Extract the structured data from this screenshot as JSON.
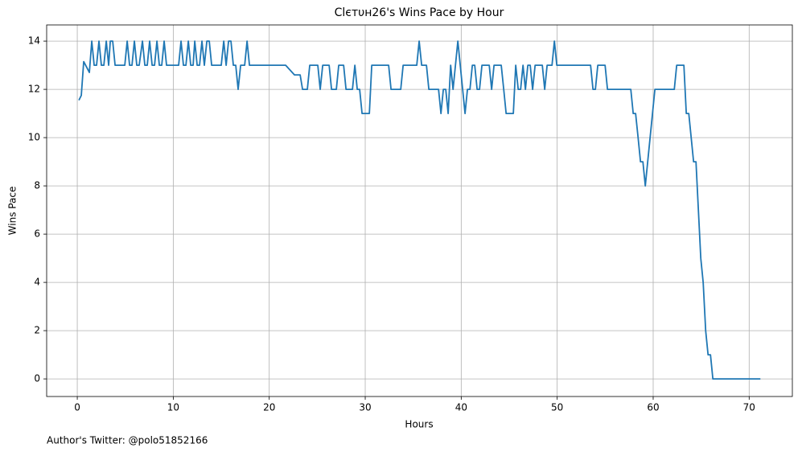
{
  "chart_data": {
    "type": "line",
    "title": "Clєтυн26's Wins Pace by Hour",
    "xlabel": "Hours",
    "ylabel": "Wins Pace",
    "footnote": "Author's Twitter: @polo51852166",
    "color": "#1f77b4",
    "grid": true,
    "xlim": [
      -3.19,
      74.5
    ],
    "ylim": [
      -0.73,
      14.67
    ],
    "xticks": [
      0,
      10,
      20,
      30,
      40,
      50,
      60,
      70
    ],
    "yticks": [
      0,
      2,
      4,
      6,
      8,
      10,
      12,
      14
    ],
    "x": [
      0.17,
      0.42,
      0.67,
      1.26,
      1.51,
      1.76,
      2.01,
      2.26,
      2.51,
      2.77,
      3.02,
      3.27,
      3.44,
      3.69,
      3.94,
      4.95,
      5.2,
      5.45,
      5.7,
      5.95,
      6.2,
      6.45,
      6.79,
      7.04,
      7.29,
      7.54,
      7.8,
      8.05,
      8.3,
      8.55,
      8.8,
      9.05,
      9.3,
      10.56,
      10.81,
      11.06,
      11.32,
      11.57,
      11.82,
      12.07,
      12.24,
      12.49,
      12.74,
      12.99,
      13.24,
      13.5,
      13.75,
      14.0,
      15.0,
      15.26,
      15.51,
      15.76,
      16.01,
      16.26,
      16.51,
      16.76,
      17.02,
      17.44,
      17.69,
      17.94,
      21.71,
      22.63,
      23.22,
      23.47,
      23.97,
      24.22,
      25.06,
      25.31,
      25.57,
      26.24,
      26.49,
      26.99,
      27.24,
      27.75,
      28.0,
      28.67,
      28.92,
      29.17,
      29.42,
      29.67,
      30.43,
      30.68,
      32.44,
      32.69,
      33.7,
      33.95,
      35.37,
      35.62,
      35.88,
      36.38,
      36.63,
      37.64,
      37.89,
      38.14,
      38.39,
      38.64,
      38.9,
      39.15,
      39.4,
      39.65,
      39.9,
      40.15,
      40.4,
      40.65,
      40.91,
      41.16,
      41.41,
      41.66,
      41.91,
      42.16,
      42.92,
      43.17,
      43.42,
      44.17,
      44.43,
      44.68,
      45.43,
      45.68,
      45.94,
      46.19,
      46.44,
      46.69,
      46.94,
      47.19,
      47.44,
      47.7,
      48.45,
      48.7,
      48.95,
      49.46,
      49.71,
      49.96,
      53.48,
      53.73,
      53.98,
      54.23,
      54.99,
      55.24,
      57.67,
      57.92,
      58.17,
      58.43,
      58.68,
      58.93,
      59.18,
      59.43,
      59.68,
      59.93,
      60.18,
      62.2,
      62.45,
      63.2,
      63.45,
      63.71,
      63.96,
      64.21,
      64.46,
      64.71,
      64.96,
      65.21,
      65.47,
      65.72,
      65.97,
      66.22,
      71.17
    ],
    "values": [
      11.55,
      11.75,
      13.15,
      12.7,
      14,
      13,
      13,
      14,
      13,
      13,
      14,
      13,
      14,
      14,
      13,
      13,
      14,
      13,
      13,
      14,
      13,
      13,
      14,
      13,
      13,
      14,
      13,
      13,
      14,
      13,
      13,
      14,
      13,
      13,
      14,
      13,
      13,
      14,
      13,
      13,
      14,
      13,
      13,
      14,
      13,
      14,
      14,
      13,
      13,
      14,
      13,
      14,
      14,
      13,
      13,
      12,
      13,
      13,
      14,
      13,
      13,
      12.6,
      12.6,
      12,
      12,
      13,
      13,
      12,
      13,
      13,
      12,
      12,
      13,
      13,
      12,
      12,
      13,
      12,
      12,
      11,
      11,
      13,
      13,
      12,
      12,
      13,
      13,
      14,
      13,
      13,
      12,
      12,
      11,
      12,
      12,
      11,
      13,
      12,
      13,
      14,
      13,
      12,
      11,
      12,
      12,
      13,
      13,
      12,
      12,
      13,
      13,
      12,
      13,
      13,
      12,
      11,
      11,
      13,
      12,
      12,
      13,
      12,
      13,
      13,
      12,
      13,
      13,
      12,
      13,
      13,
      14,
      13,
      13,
      12,
      12,
      13,
      13,
      12,
      12,
      11,
      11,
      10,
      9,
      9,
      8,
      9,
      10,
      11,
      12,
      12,
      13,
      13,
      11,
      11,
      10,
      9,
      9,
      7,
      5,
      4,
      2,
      1,
      1,
      0,
      0
    ]
  }
}
